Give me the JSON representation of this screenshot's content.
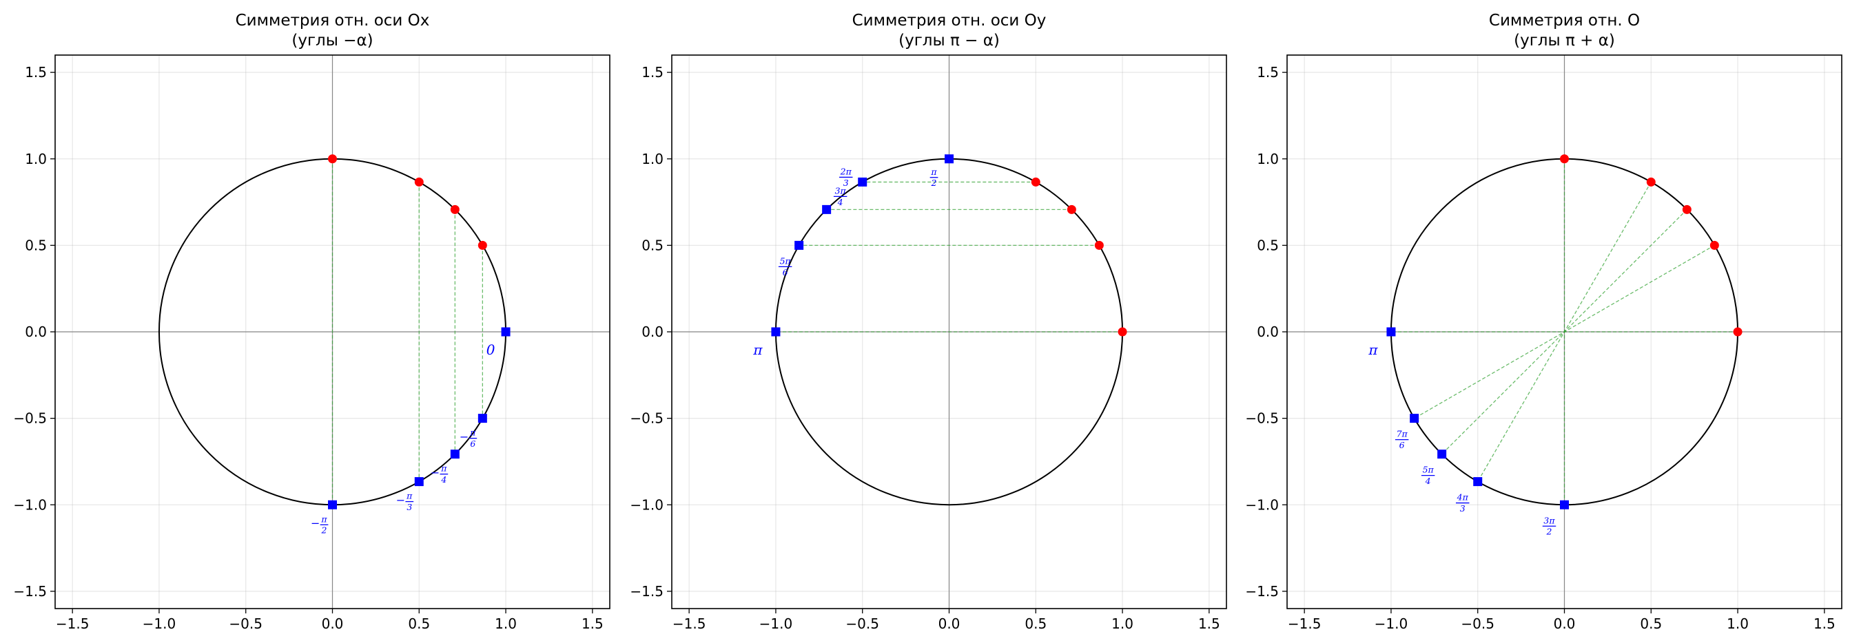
{
  "chart_data": [
    {
      "type": "scatter",
      "title_line1": "Симметрия отн. оси Ox",
      "title_line2": "(углы −α)",
      "xlim": [
        -1.6,
        1.6
      ],
      "ylim": [
        -1.6,
        1.6
      ],
      "xticks": [
        -1.5,
        -1.0,
        -0.5,
        0.0,
        0.5,
        1.0,
        1.5
      ],
      "yticks": [
        -1.5,
        -1.0,
        -0.5,
        0.0,
        0.5,
        1.0,
        1.5
      ],
      "xtick_labels": [
        "−1.5",
        "−1.0",
        "−0.5",
        "0.0",
        "0.5",
        "1.0",
        "1.5"
      ],
      "ytick_labels": [
        "−1.5",
        "−1.0",
        "−0.5",
        "0.0",
        "0.5",
        "1.0",
        "1.5"
      ],
      "grid": true,
      "unit_circle": true,
      "red_points": [
        {
          "x": 0.866,
          "y": 0.5
        },
        {
          "x": 0.707,
          "y": 0.707
        },
        {
          "x": 0.5,
          "y": 0.866
        },
        {
          "x": 0.0,
          "y": 1.0
        }
      ],
      "blue_points": [
        {
          "x": 1.0,
          "y": 0.0,
          "label": "0"
        },
        {
          "x": 0.866,
          "y": -0.5,
          "label": "−π/6"
        },
        {
          "x": 0.707,
          "y": -0.707,
          "label": "−π/4"
        },
        {
          "x": 0.5,
          "y": -0.866,
          "label": "−π/3"
        },
        {
          "x": 0.0,
          "y": -1.0,
          "label": "−π/2"
        }
      ],
      "connectors": [
        {
          "from": [
            0.866,
            0.5
          ],
          "to": [
            0.866,
            -0.5
          ]
        },
        {
          "from": [
            0.707,
            0.707
          ],
          "to": [
            0.707,
            -0.707
          ]
        },
        {
          "from": [
            0.5,
            0.866
          ],
          "to": [
            0.5,
            -0.866
          ]
        },
        {
          "from": [
            0.0,
            1.0
          ],
          "to": [
            0.0,
            -1.0
          ]
        }
      ],
      "colors": {
        "red": "#ff0000",
        "blue": "#0000ff",
        "connector": "#2ca02c",
        "circle": "#000000"
      }
    },
    {
      "type": "scatter",
      "title_line1": "Симметрия отн. оси Oy",
      "title_line2": "(углы π − α)",
      "xlim": [
        -1.6,
        1.6
      ],
      "ylim": [
        -1.6,
        1.6
      ],
      "xticks": [
        -1.5,
        -1.0,
        -0.5,
        0.0,
        0.5,
        1.0,
        1.5
      ],
      "yticks": [
        -1.5,
        -1.0,
        -0.5,
        0.0,
        0.5,
        1.0,
        1.5
      ],
      "xtick_labels": [
        "−1.5",
        "−1.0",
        "−0.5",
        "0.0",
        "0.5",
        "1.0",
        "1.5"
      ],
      "ytick_labels": [
        "−1.5",
        "−1.0",
        "−0.5",
        "0.0",
        "0.5",
        "1.0",
        "1.5"
      ],
      "grid": true,
      "unit_circle": true,
      "red_points": [
        {
          "x": 1.0,
          "y": 0.0
        },
        {
          "x": 0.866,
          "y": 0.5
        },
        {
          "x": 0.707,
          "y": 0.707
        },
        {
          "x": 0.5,
          "y": 0.866
        }
      ],
      "blue_points": [
        {
          "x": -1.0,
          "y": 0.0,
          "label": "π"
        },
        {
          "x": -0.866,
          "y": 0.5,
          "label": "5π/6"
        },
        {
          "x": -0.707,
          "y": 0.707,
          "label": "3π/4"
        },
        {
          "x": -0.5,
          "y": 0.866,
          "label": "2π/3"
        },
        {
          "x": 0.0,
          "y": 1.0,
          "label": "π/2"
        }
      ],
      "connectors": [
        {
          "from": [
            1.0,
            0.0
          ],
          "to": [
            -1.0,
            0.0
          ]
        },
        {
          "from": [
            0.866,
            0.5
          ],
          "to": [
            -0.866,
            0.5
          ]
        },
        {
          "from": [
            0.707,
            0.707
          ],
          "to": [
            -0.707,
            0.707
          ]
        },
        {
          "from": [
            0.5,
            0.866
          ],
          "to": [
            -0.5,
            0.866
          ]
        }
      ],
      "colors": {
        "red": "#ff0000",
        "blue": "#0000ff",
        "connector": "#2ca02c",
        "circle": "#000000"
      }
    },
    {
      "type": "scatter",
      "title_line1": "Симметрия отн. O",
      "title_line2": "(углы π + α)",
      "xlim": [
        -1.6,
        1.6
      ],
      "ylim": [
        -1.6,
        1.6
      ],
      "xticks": [
        -1.5,
        -1.0,
        -0.5,
        0.0,
        0.5,
        1.0,
        1.5
      ],
      "yticks": [
        -1.5,
        -1.0,
        -0.5,
        0.0,
        0.5,
        1.0,
        1.5
      ],
      "xtick_labels": [
        "−1.5",
        "−1.0",
        "−0.5",
        "0.0",
        "0.5",
        "1.0",
        "1.5"
      ],
      "ytick_labels": [
        "−1.5",
        "−1.0",
        "−0.5",
        "0.0",
        "0.5",
        "1.0",
        "1.5"
      ],
      "grid": true,
      "unit_circle": true,
      "red_points": [
        {
          "x": 1.0,
          "y": 0.0
        },
        {
          "x": 0.866,
          "y": 0.5
        },
        {
          "x": 0.707,
          "y": 0.707
        },
        {
          "x": 0.5,
          "y": 0.866
        },
        {
          "x": 0.0,
          "y": 1.0
        }
      ],
      "blue_points": [
        {
          "x": -1.0,
          "y": 0.0,
          "label": "π"
        },
        {
          "x": -0.866,
          "y": -0.5,
          "label": "7π/6"
        },
        {
          "x": -0.707,
          "y": -0.707,
          "label": "5π/4"
        },
        {
          "x": -0.5,
          "y": -0.866,
          "label": "4π/3"
        },
        {
          "x": 0.0,
          "y": -1.0,
          "label": "3π/2"
        }
      ],
      "connectors": [
        {
          "from": [
            1.0,
            0.0
          ],
          "to": [
            -1.0,
            0.0
          ]
        },
        {
          "from": [
            0.866,
            0.5
          ],
          "to": [
            -0.866,
            -0.5
          ]
        },
        {
          "from": [
            0.707,
            0.707
          ],
          "to": [
            -0.707,
            -0.707
          ]
        },
        {
          "from": [
            0.5,
            0.866
          ],
          "to": [
            -0.5,
            -0.866
          ]
        },
        {
          "from": [
            0.0,
            1.0
          ],
          "to": [
            0.0,
            -1.0
          ]
        }
      ],
      "colors": {
        "red": "#ff0000",
        "blue": "#0000ff",
        "connector": "#2ca02c",
        "circle": "#000000"
      }
    }
  ]
}
